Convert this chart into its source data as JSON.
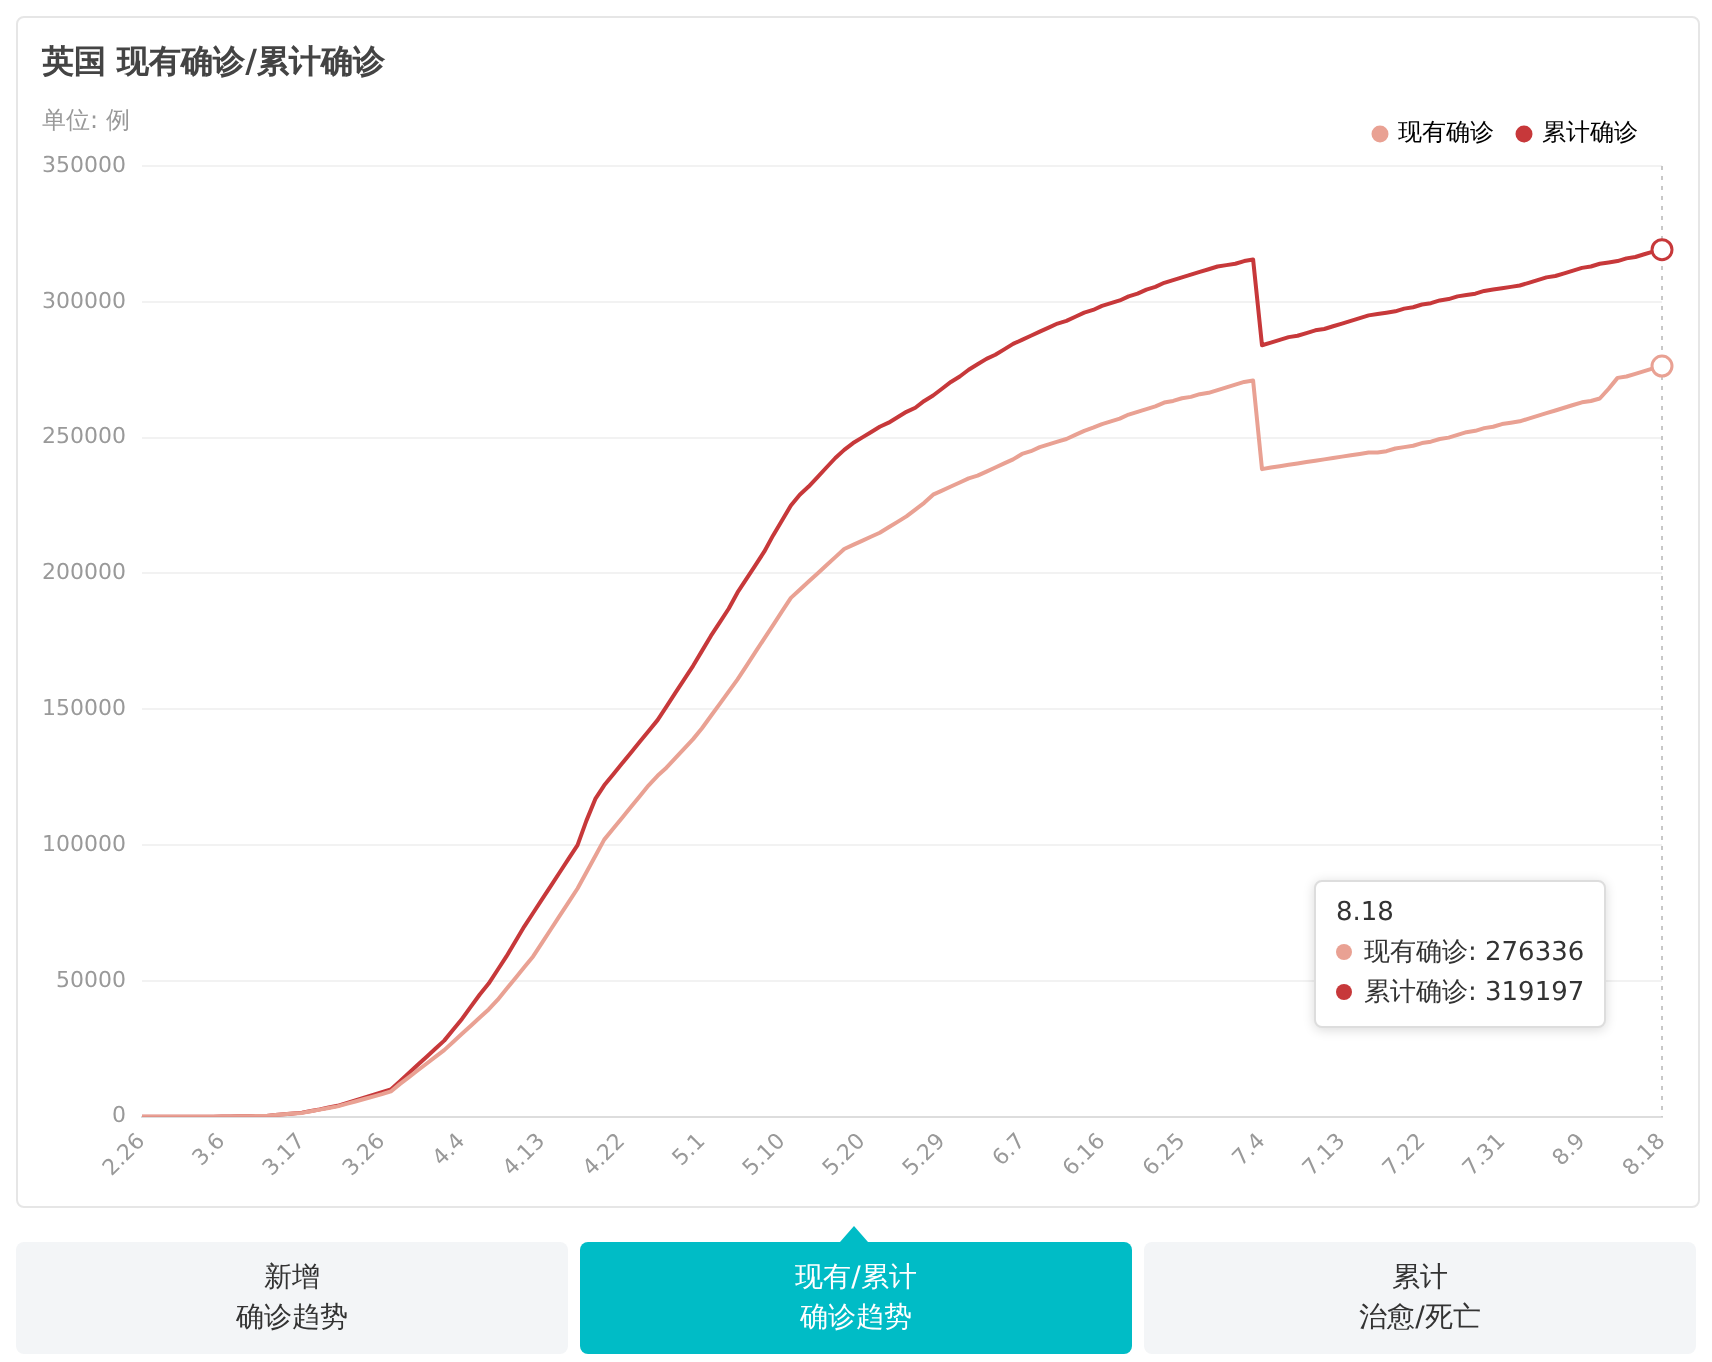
{
  "chart_data": {
    "type": "line",
    "title": "英国 现有确诊/累计确诊",
    "subtitle": "单位: 例",
    "categories": [
      "2.26",
      null,
      null,
      null,
      null,
      null,
      null,
      null,
      null,
      "3.6",
      null,
      null,
      null,
      null,
      null,
      null,
      null,
      null,
      "3.17",
      null,
      null,
      null,
      null,
      null,
      null,
      null,
      null,
      "3.26",
      null,
      null,
      null,
      null,
      null,
      null,
      null,
      null,
      "4.4",
      null,
      null,
      null,
      null,
      null,
      null,
      null,
      null,
      "4.13",
      null,
      null,
      null,
      null,
      null,
      null,
      null,
      null,
      "4.22",
      null,
      null,
      null,
      null,
      null,
      null,
      null,
      null,
      "5.1",
      null,
      null,
      null,
      null,
      null,
      null,
      null,
      null,
      "5.10",
      null,
      null,
      null,
      null,
      null,
      null,
      null,
      null,
      "5.20",
      null,
      null,
      null,
      null,
      null,
      null,
      null,
      null,
      "5.29",
      null,
      null,
      null,
      null,
      null,
      null,
      null,
      null,
      "6.7",
      null,
      null,
      null,
      null,
      null,
      null,
      null,
      null,
      "6.16",
      null,
      null,
      null,
      null,
      null,
      null,
      null,
      null,
      "6.25",
      null,
      null,
      null,
      null,
      null,
      null,
      null,
      null,
      "7.4",
      null,
      null,
      null,
      null,
      null,
      null,
      null,
      null,
      "7.13",
      null,
      null,
      null,
      null,
      null,
      null,
      null,
      null,
      "7.22",
      null,
      null,
      null,
      null,
      null,
      null,
      null,
      null,
      "7.31",
      null,
      null,
      null,
      null,
      null,
      null,
      null,
      null,
      "8.9",
      null,
      null,
      null,
      null,
      null,
      null,
      null,
      null,
      "8.18"
    ],
    "series": [
      {
        "name": "现有确诊",
        "color": "#e9a193",
        "values": [
          0,
          0,
          0,
          0,
          0,
          0,
          0,
          0,
          0,
          100,
          100,
          200,
          200,
          300,
          300,
          600,
          900,
          1200,
          1400,
          2000,
          2600,
          3200,
          3800,
          4700,
          5600,
          6500,
          7400,
          8300,
          9300,
          12000,
          14500,
          17000,
          19500,
          22000,
          24500,
          27500,
          30500,
          33500,
          36500,
          39500,
          43000,
          47000,
          51000,
          55000,
          59000,
          64000,
          69000,
          74000,
          79000,
          84000,
          90000,
          96000,
          102000,
          106000,
          110000,
          114000,
          118000,
          122000,
          125500,
          128500,
          132000,
          135500,
          139000,
          143000,
          147500,
          152000,
          156500,
          161000,
          166000,
          171000,
          176000,
          181000,
          186000,
          191000,
          194000,
          197000,
          200000,
          203000,
          206000,
          209000,
          210500,
          212000,
          213500,
          215000,
          217000,
          219000,
          221000,
          223500,
          226000,
          229000,
          230500,
          232000,
          233500,
          235000,
          236000,
          237500,
          239000,
          240500,
          242000,
          244000,
          245000,
          246500,
          247500,
          248500,
          249500,
          251000,
          252500,
          253700,
          255000,
          256000,
          257000,
          258500,
          259500,
          260500,
          261500,
          262900,
          263500,
          264500,
          265000,
          266000,
          266500,
          267500,
          268500,
          269500,
          270500,
          271000,
          238400,
          239000,
          239500,
          240000,
          240500,
          241000,
          241500,
          242000,
          242500,
          243000,
          243500,
          244000,
          244500,
          244500,
          245000,
          246000,
          246500,
          247000,
          248000,
          248500,
          249500,
          250000,
          251000,
          252000,
          252500,
          253500,
          254000,
          255000,
          255500,
          256000,
          257000,
          258000,
          259000,
          260000,
          261000,
          262000,
          263000,
          263500,
          264400,
          268000,
          272000,
          272500,
          273500,
          274500,
          275500,
          276336
        ]
      },
      {
        "name": "累计确诊",
        "color": "#c7383a",
        "values": [
          0,
          0,
          0,
          0,
          0,
          0,
          0,
          0,
          0,
          100,
          100,
          200,
          200,
          300,
          300,
          600,
          900,
          1200,
          1500,
          2100,
          2700,
          3400,
          4000,
          5000,
          6000,
          7000,
          8000,
          9000,
          10000,
          13000,
          16000,
          19000,
          22000,
          25000,
          28000,
          32000,
          36000,
          40500,
          45000,
          49000,
          54000,
          59000,
          64500,
          70000,
          75000,
          80000,
          85000,
          90000,
          95000,
          100000,
          109000,
          117000,
          122000,
          126000,
          130000,
          134000,
          138000,
          142000,
          146000,
          151000,
          156000,
          161000,
          166000,
          171500,
          177000,
          182000,
          187000,
          193000,
          198000,
          203000,
          208000,
          214000,
          219500,
          225000,
          229000,
          232000,
          235500,
          239000,
          242500,
          245500,
          248000,
          250000,
          252000,
          254000,
          255500,
          257500,
          259500,
          261000,
          263500,
          265500,
          268000,
          270500,
          272500,
          275000,
          277000,
          279000,
          280500,
          282500,
          284500,
          286000,
          287500,
          289000,
          290500,
          292000,
          293000,
          294500,
          296000,
          297000,
          298500,
          299500,
          300500,
          302000,
          303000,
          304500,
          305500,
          307000,
          308000,
          309000,
          310000,
          311000,
          312000,
          313000,
          313500,
          314000,
          315000,
          315600,
          284000,
          285000,
          286000,
          287000,
          287500,
          288500,
          289500,
          290000,
          291000,
          292000,
          293000,
          294000,
          295000,
          295500,
          296000,
          296500,
          297500,
          298000,
          299000,
          299500,
          300500,
          301000,
          302000,
          302500,
          303000,
          304000,
          304500,
          305000,
          305500,
          306000,
          307000,
          308000,
          309000,
          309500,
          310500,
          311500,
          312500,
          313000,
          314000,
          314500,
          315000,
          316000,
          316500,
          317500,
          318500,
          319197
        ]
      }
    ],
    "ylim": [
      0,
      350000
    ],
    "yticks": [
      0,
      50000,
      100000,
      150000,
      200000,
      250000,
      300000,
      350000
    ],
    "grid": "y",
    "legend": "top right",
    "marker": "none",
    "line_style": "solid",
    "ref_lines": [
      {
        "axis": "x",
        "value": "8.18",
        "color": "#c8c8c8",
        "line_style": "dotted"
      }
    ],
    "annotations": [
      "现有确诊: 276336",
      "累计确诊: 319197",
      "新增",
      "确诊趋势",
      "现有/累计",
      "确诊趋势",
      "累计",
      "治愈/死亡"
    ]
  }
}
